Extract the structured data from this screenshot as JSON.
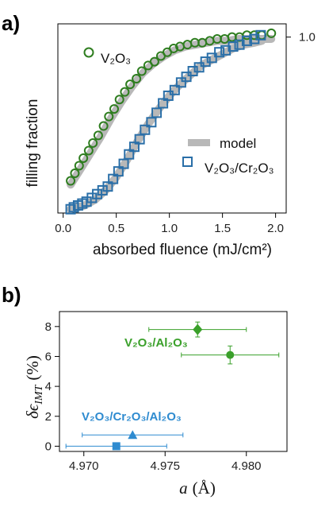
{
  "chart_data": [
    {
      "panel": "a)",
      "type": "scatter",
      "xlabel": "absorbed fluence (mJ/cm²)",
      "ylabel": "filling fraction",
      "xlim": [
        -0.05,
        2.1
      ],
      "ylim": [
        0.0,
        1.0
      ],
      "xticks": [
        "0.0",
        "0.5",
        "1.0",
        "1.5",
        "2.0"
      ],
      "right_tick": "1.0",
      "right_tick_value": 0.93,
      "grid": false,
      "legend": {
        "position": "bottom-right",
        "model_label": "model",
        "series_label": "V₂O₃/Cr₂O₃"
      },
      "series": [
        {
          "name": "V₂O₃",
          "marker": "circle",
          "color": "#2e7d1f",
          "x": [
            0.07,
            0.11,
            0.15,
            0.19,
            0.24,
            0.28,
            0.33,
            0.38,
            0.43,
            0.48,
            0.53,
            0.58,
            0.63,
            0.69,
            0.74,
            0.8,
            0.86,
            0.92,
            0.98,
            1.04,
            1.1,
            1.17,
            1.24,
            1.31,
            1.38,
            1.45,
            1.52,
            1.59,
            1.66,
            1.73,
            1.8,
            1.87,
            1.96
          ],
          "y": [
            0.17,
            0.21,
            0.25,
            0.29,
            0.33,
            0.37,
            0.41,
            0.46,
            0.51,
            0.55,
            0.6,
            0.64,
            0.68,
            0.71,
            0.75,
            0.78,
            0.8,
            0.83,
            0.85,
            0.87,
            0.88,
            0.89,
            0.9,
            0.9,
            0.91,
            0.92,
            0.92,
            0.93,
            0.93,
            0.94,
            0.94,
            0.94,
            0.95
          ]
        },
        {
          "name": "V₂O₃/Cr₂O₃",
          "marker": "square",
          "color": "#2a6fa8",
          "x": [
            0.07,
            0.1,
            0.14,
            0.18,
            0.22,
            0.27,
            0.32,
            0.37,
            0.42,
            0.47,
            0.52,
            0.57,
            0.62,
            0.67,
            0.72,
            0.77,
            0.83,
            0.88,
            0.94,
            0.99,
            1.05,
            1.11,
            1.16,
            1.22,
            1.28,
            1.34,
            1.4,
            1.47,
            1.53,
            1.6,
            1.66,
            1.73,
            1.8,
            1.86
          ],
          "y": [
            0.02,
            0.03,
            0.04,
            0.05,
            0.06,
            0.08,
            0.1,
            0.12,
            0.14,
            0.18,
            0.22,
            0.26,
            0.31,
            0.35,
            0.39,
            0.44,
            0.48,
            0.53,
            0.58,
            0.62,
            0.65,
            0.69,
            0.72,
            0.75,
            0.77,
            0.8,
            0.82,
            0.85,
            0.86,
            0.88,
            0.89,
            0.91,
            0.92,
            0.94
          ]
        }
      ],
      "model": [
        {
          "x": [
            0.07,
            0.15,
            0.25,
            0.35,
            0.45,
            0.55,
            0.65,
            0.75,
            0.85,
            0.95,
            1.05,
            1.15,
            1.25,
            1.35,
            1.45,
            1.55,
            1.65,
            1.75,
            1.85,
            1.96
          ],
          "y": [
            0.15,
            0.22,
            0.31,
            0.4,
            0.5,
            0.59,
            0.67,
            0.74,
            0.79,
            0.83,
            0.86,
            0.88,
            0.89,
            0.9,
            0.91,
            0.91,
            0.92,
            0.92,
            0.92,
            0.92
          ]
        },
        {
          "x": [
            0.07,
            0.2,
            0.3,
            0.4,
            0.5,
            0.6,
            0.7,
            0.8,
            0.9,
            1.0,
            1.1,
            1.2,
            1.3,
            1.4,
            1.5,
            1.6,
            1.7,
            1.8,
            1.87
          ],
          "y": [
            0.02,
            0.04,
            0.07,
            0.12,
            0.19,
            0.28,
            0.38,
            0.47,
            0.55,
            0.62,
            0.68,
            0.73,
            0.78,
            0.81,
            0.84,
            0.87,
            0.89,
            0.9,
            0.91
          ]
        }
      ]
    },
    {
      "panel": "b)",
      "type": "scatter",
      "xlabel_symbol": "a",
      "xlabel_unit": "(Å)",
      "ylabel_main": "δϵ",
      "ylabel_sub": "IMT",
      "ylabel_unit": "(%)",
      "xlim": [
        4.9685,
        4.9825
      ],
      "ylim": [
        -0.35,
        9.0
      ],
      "xticks": [
        4.97,
        4.975,
        4.98
      ],
      "xtick_labels": [
        "4.970",
        "4.975",
        "4.980"
      ],
      "yticks": [
        0,
        2,
        4,
        6,
        8
      ],
      "ytick_labels": [
        "0",
        "2",
        "4",
        "6",
        "8"
      ],
      "grid": false,
      "groups": [
        {
          "label": "V₂O₃/Al₂O₃",
          "color": "#3aa02a",
          "points": [
            {
              "marker": "diamond",
              "x": 4.977,
              "y": 7.8,
              "xerr": 0.003,
              "yerr": 0.5
            },
            {
              "marker": "circle",
              "x": 4.979,
              "y": 6.1,
              "xerr": 0.003,
              "yerr": 0.6
            }
          ]
        },
        {
          "label": "V₂O₃/Cr₂O₃/Al₂O₃",
          "color": "#2e8bd0",
          "points": [
            {
              "marker": "triangle",
              "x": 4.973,
              "y": 0.75,
              "xerr": 0.0031,
              "yerr": 0
            },
            {
              "marker": "square",
              "x": 4.972,
              "y": 0.0,
              "xerr": 0.0031,
              "yerr": 0
            }
          ]
        }
      ]
    }
  ]
}
